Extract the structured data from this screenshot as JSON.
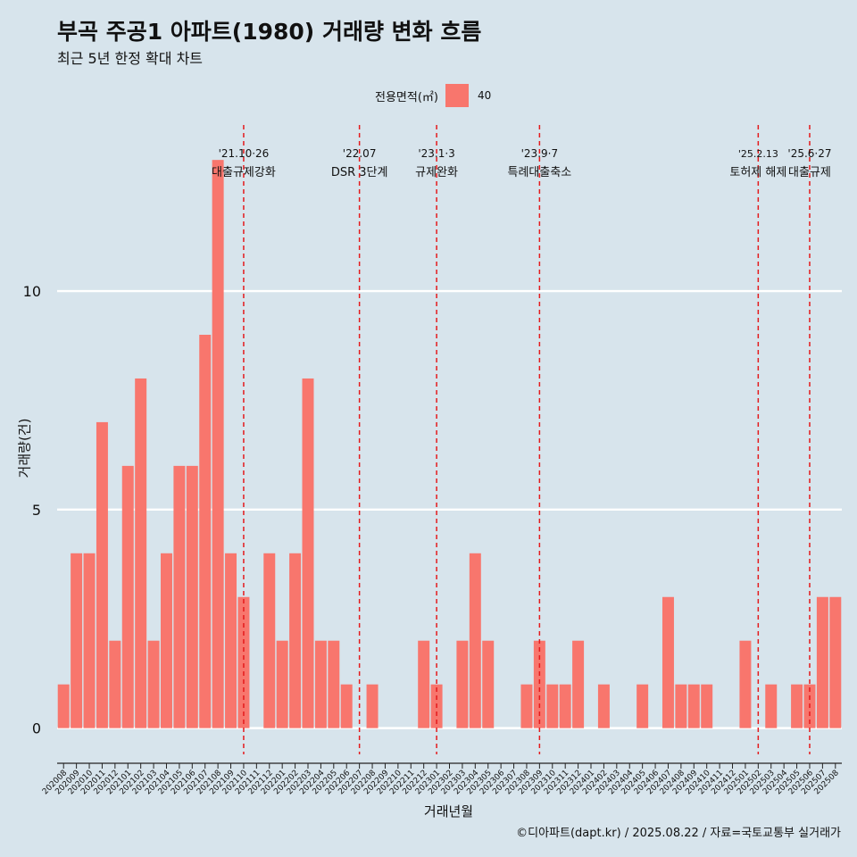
{
  "title": "부곡 주공1 아파트(1980) 거래량 변화 흐름",
  "subtitle": "최근 5년 한정 확대 차트",
  "legend": {
    "title": "전용면적(㎡)",
    "label": "40",
    "color": "#f8766d"
  },
  "xlabel": "거래년월",
  "ylabel": "거래량(건)",
  "caption": "©디아파트(dapt.kr) / 2025.08.22 / 자료=국토교통부 실거래가",
  "chart_data": {
    "type": "bar",
    "title": "부곡 주공1 아파트(1980) 거래량 변화 흐름",
    "subtitle": "최근 5년 한정 확대 차트",
    "xlabel": "거래년월",
    "ylabel": "거래량(건)",
    "ylim": [
      -0.6,
      13.8
    ],
    "yticks": [
      0,
      5,
      10
    ],
    "grid": "horizontal",
    "legend_position": "top",
    "bar_color": "#f8766d",
    "background": "#d7e4ec",
    "categories": [
      "202008",
      "202009",
      "202010",
      "202011",
      "202012",
      "202101",
      "202102",
      "202103",
      "202104",
      "202105",
      "202106",
      "202107",
      "202108",
      "202109",
      "202110",
      "202111",
      "202112",
      "202201",
      "202202",
      "202203",
      "202204",
      "202205",
      "202206",
      "202207",
      "202208",
      "202209",
      "202210",
      "202211",
      "202212",
      "202301",
      "202302",
      "202303",
      "202304",
      "202305",
      "202306",
      "202307",
      "202308",
      "202309",
      "202310",
      "202311",
      "202312",
      "202401",
      "202402",
      "202403",
      "202404",
      "202405",
      "202406",
      "202407",
      "202408",
      "202409",
      "202410",
      "202411",
      "202412",
      "202501",
      "202502",
      "202503",
      "202504",
      "202505",
      "202506",
      "202507",
      "202508"
    ],
    "series": [
      {
        "name": "40",
        "values": [
          1,
          4,
          4,
          7,
          2,
          6,
          8,
          2,
          4,
          6,
          6,
          9,
          13,
          4,
          3,
          0,
          4,
          2,
          4,
          8,
          2,
          2,
          1,
          0,
          1,
          0,
          0,
          0,
          2,
          1,
          0,
          2,
          4,
          2,
          0,
          0,
          1,
          2,
          1,
          1,
          2,
          0,
          1,
          0,
          0,
          1,
          0,
          3,
          1,
          1,
          1,
          0,
          0,
          2,
          0,
          1,
          0,
          1,
          1,
          3,
          3
        ]
      }
    ],
    "annotations": [
      {
        "x": 14.5,
        "label_top": "'21.10·26",
        "label_bottom": "대출규제강화",
        "color": "#e41a1c",
        "style": "dashed"
      },
      {
        "x": 23.5,
        "label_top": "'22.07",
        "label_bottom": "DSR 3단계",
        "color": "#e41a1c",
        "style": "dashed"
      },
      {
        "x": 29.5,
        "label_top": "'23.1·3",
        "label_bottom": "규제완화",
        "color": "#e41a1c",
        "style": "dashed"
      },
      {
        "x": 37.5,
        "label_top": "'23.9·7",
        "label_bottom": "특례대출축소",
        "color": "#e41a1c",
        "style": "dashed"
      },
      {
        "x": 54.5,
        "label_top": "'25.2.13",
        "label_bottom": "토허제 해제",
        "color": "#e41a1c",
        "style": "dashed"
      },
      {
        "x": 58.5,
        "label_top": "'25.6·27",
        "label_bottom": "대출규제",
        "color": "#e41a1c",
        "style": "dashed"
      }
    ]
  }
}
